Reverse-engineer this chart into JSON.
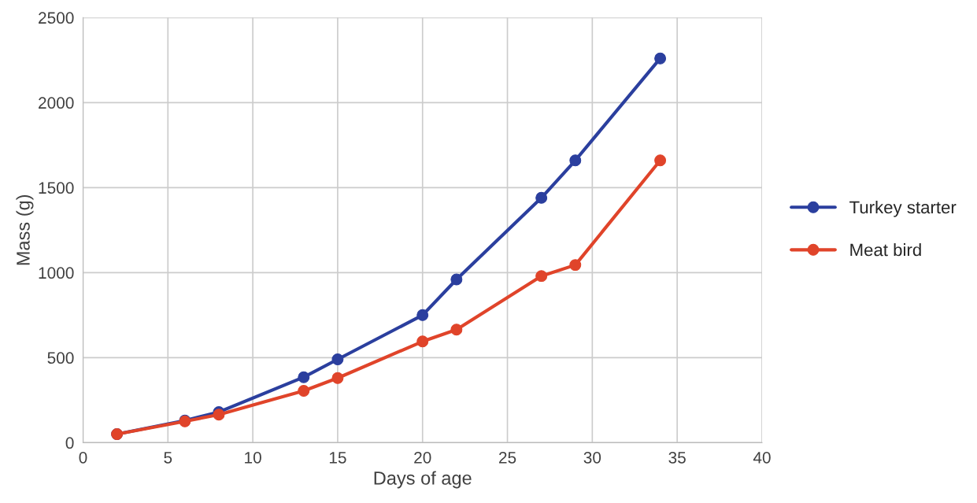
{
  "chart_data": {
    "type": "line",
    "xlabel": "Days of age",
    "ylabel": "Mass (g)",
    "series": [
      {
        "name": "Turkey starter",
        "color": "#2b3f9e",
        "x": [
          2,
          6,
          8,
          13,
          15,
          20,
          22,
          27,
          29,
          34
        ],
        "values": [
          50,
          130,
          180,
          385,
          490,
          750,
          960,
          1440,
          1660,
          2260
        ]
      },
      {
        "name": "Meat bird",
        "color": "#e0442a",
        "x": [
          2,
          6,
          8,
          13,
          15,
          20,
          22,
          27,
          29,
          34
        ],
        "values": [
          50,
          125,
          165,
          305,
          380,
          595,
          665,
          980,
          1045,
          1660
        ]
      }
    ],
    "xlim": [
      0,
      40
    ],
    "xticks": [
      0,
      5,
      10,
      15,
      20,
      25,
      30,
      35,
      40
    ],
    "ylim": [
      0,
      2500
    ],
    "yticks": [
      0,
      500,
      1000,
      1500,
      2000,
      2500
    ],
    "grid": true,
    "legend": "right",
    "marker": "circle",
    "line_style": "solid"
  }
}
